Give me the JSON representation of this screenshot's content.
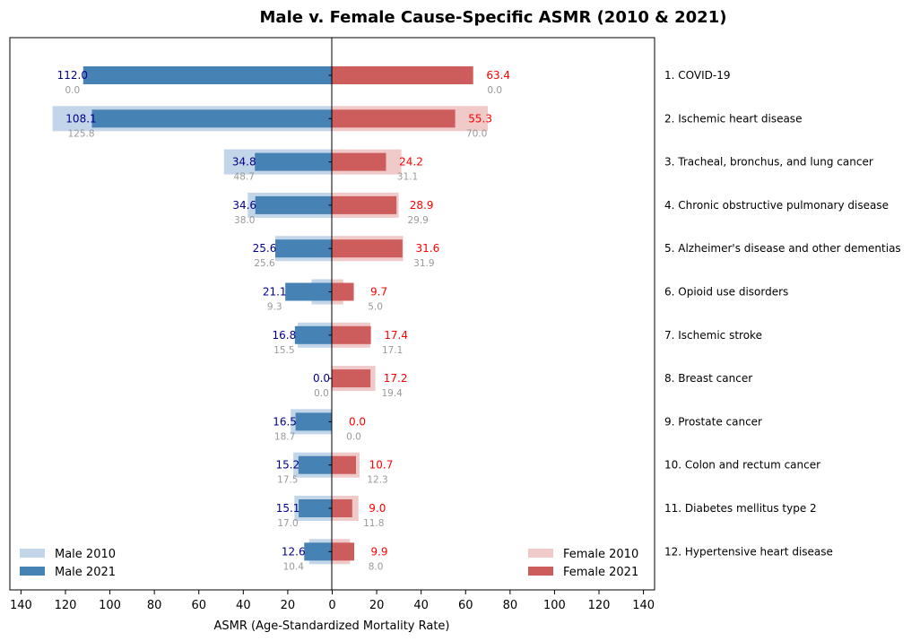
{
  "chart_data": {
    "type": "bar",
    "orientation": "horizontal-diverging",
    "title": "Male v. Female Cause-Specific ASMR (2010 & 2021)",
    "xlabel": "ASMR (Age-Standardized Mortality Rate)",
    "xlim": [
      -145,
      145
    ],
    "xticks": [
      -140,
      -120,
      -100,
      -80,
      -60,
      -40,
      -20,
      0,
      20,
      40,
      60,
      80,
      100,
      120,
      140
    ],
    "xtick_labels": [
      "140",
      "120",
      "100",
      "80",
      "60",
      "40",
      "20",
      "0",
      "20",
      "40",
      "60",
      "80",
      "100",
      "120",
      "140"
    ],
    "categories": [
      "1. COVID-19",
      "2. Ischemic heart disease",
      "3. Tracheal, bronchus, and lung cancer",
      "4. Chronic obstructive pulmonary disease",
      "5. Alzheimer's disease and other dementias",
      "6. Opioid use disorders",
      "7. Ischemic stroke",
      "8. Breast cancer",
      "9. Prostate cancer",
      "10. Colon and rectum cancer",
      "11. Diabetes mellitus type 2",
      "12. Hypertensive heart disease"
    ],
    "series": [
      {
        "name": "Male 2010",
        "side": "left",
        "color": "#c3d6e9",
        "values": [
          0.0,
          125.8,
          48.7,
          38.0,
          25.6,
          9.3,
          15.5,
          0.0,
          18.7,
          17.5,
          17.0,
          10.4
        ],
        "labels": [
          "0.0",
          "125.8",
          "48.7",
          "38.0",
          "25.6",
          "9.3",
          "15.5",
          "0.0",
          "18.7",
          "17.5",
          "17.0",
          "10.4"
        ]
      },
      {
        "name": "Male 2021",
        "side": "left",
        "color": "#4682b4",
        "values": [
          112.0,
          108.1,
          34.8,
          34.6,
          25.6,
          21.1,
          16.8,
          0.0,
          16.5,
          15.2,
          15.1,
          12.6
        ],
        "labels": [
          "112.0",
          "108.1",
          "34.8",
          "34.6",
          "25.6",
          "21.1",
          "16.8",
          "0.0",
          "16.5",
          "15.2",
          "15.1",
          "12.6"
        ]
      },
      {
        "name": "Female 2010",
        "side": "right",
        "color": "#f0c9c9",
        "values": [
          0.0,
          70.0,
          31.1,
          29.9,
          31.9,
          5.0,
          17.1,
          19.4,
          0.0,
          12.3,
          11.8,
          8.0
        ],
        "labels": [
          "0.0",
          "70.0",
          "31.1",
          "29.9",
          "31.9",
          "5.0",
          "17.1",
          "19.4",
          "0.0",
          "12.3",
          "11.8",
          "8.0"
        ]
      },
      {
        "name": "Female 2021",
        "side": "right",
        "color": "#cd5c5c",
        "values": [
          63.4,
          55.3,
          24.2,
          28.9,
          31.6,
          9.7,
          17.4,
          17.2,
          0.0,
          10.7,
          9.0,
          9.9
        ],
        "labels": [
          "63.4",
          "55.3",
          "24.2",
          "28.9",
          "31.6",
          "9.7",
          "17.4",
          "17.2",
          "0.0",
          "10.7",
          "9.0",
          "9.9"
        ]
      }
    ],
    "label_colors": {
      "male_2021": "#00008b",
      "female_2021": "#ff0000",
      "old": "#999999"
    },
    "legend": {
      "left": {
        "placement": "lower-left",
        "items": [
          "Male 2010",
          "Male 2021"
        ]
      },
      "right": {
        "placement": "lower-right",
        "items": [
          "Female 2010",
          "Female 2021"
        ]
      }
    }
  }
}
